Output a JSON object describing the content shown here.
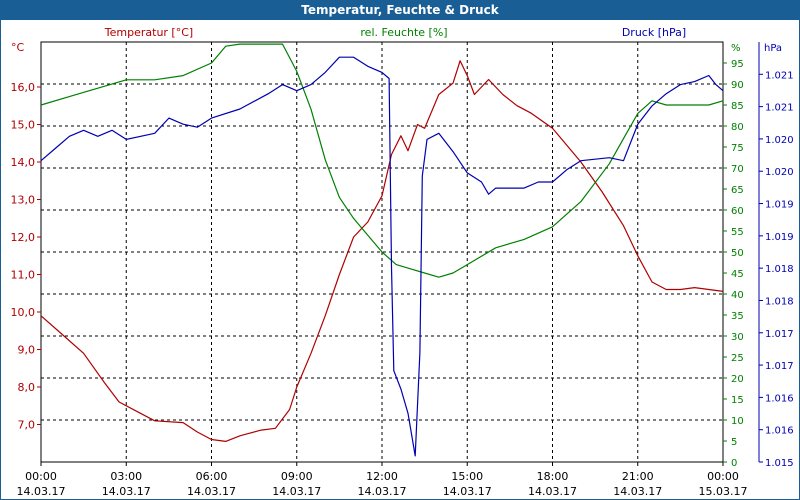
{
  "title": "Temperatur, Feuchte & Druck",
  "colors": {
    "temperature": "#b00000",
    "humidity": "#008000",
    "pressure": "#0000b0",
    "time": "#000000",
    "titlebar": "#1a5e96"
  },
  "chart_data": {
    "type": "line",
    "title": "Temperatur, Feuchte & Druck",
    "grid": true,
    "legend": "top, above plot",
    "x_axis": {
      "range": [
        "14.03.17 00:00",
        "15.03.17 00:00"
      ],
      "tick_times": [
        "00:00",
        "03:00",
        "06:00",
        "09:00",
        "12:00",
        "15:00",
        "18:00",
        "21:00",
        "00:00"
      ],
      "tick_dates": [
        "14.03.17",
        "14.03.17",
        "14.03.17",
        "14.03.17",
        "14.03.17",
        "14.03.17",
        "14.03.17",
        "14.03.17",
        "15.03.17"
      ]
    },
    "axes": {
      "temperature": {
        "unit_label": "°C",
        "ylim": [
          6.0,
          17.2
        ],
        "ticks": [
          "7,0",
          "8,0",
          "9,0",
          "10,0",
          "11,0",
          "12,0",
          "13,0",
          "14,0",
          "15,0",
          "16,0"
        ]
      },
      "humidity": {
        "unit_label": "%",
        "ylim": [
          0,
          100
        ],
        "ticks": [
          "0",
          "5",
          "10",
          "15",
          "20",
          "25",
          "30",
          "35",
          "40",
          "45",
          "50",
          "55",
          "60",
          "65",
          "70",
          "75",
          "80",
          "85",
          "90",
          "95"
        ]
      },
      "pressure": {
        "unit_label": "hPa",
        "ylim": [
          1014.8,
          1021.7
        ],
        "ticks": [
          "1.015",
          "1.016",
          "1.016",
          "1.017",
          "1.017",
          "1.018",
          "1.018",
          "1.019",
          "1.019",
          "1.020",
          "1.020",
          "1.021",
          "1.021"
        ]
      }
    },
    "series": [
      {
        "name": "Temperatur [°C]",
        "axis": "temperature",
        "points": [
          [
            "14.03.17 00:00",
            9.9
          ],
          [
            "14.03.17 00:45",
            9.4
          ],
          [
            "14.03.17 01:30",
            8.9
          ],
          [
            "14.03.17 02:15",
            8.1
          ],
          [
            "14.03.17 02:45",
            7.6
          ],
          [
            "14.03.17 03:30",
            7.3
          ],
          [
            "14.03.17 04:00",
            7.1
          ],
          [
            "14.03.17 05:00",
            7.05
          ],
          [
            "14.03.17 05:30",
            6.8
          ],
          [
            "14.03.17 06:00",
            6.6
          ],
          [
            "14.03.17 06:30",
            6.55
          ],
          [
            "14.03.17 07:00",
            6.7
          ],
          [
            "14.03.17 07:45",
            6.85
          ],
          [
            "14.03.17 08:15",
            6.9
          ],
          [
            "14.03.17 08:45",
            7.4
          ],
          [
            "14.03.17 09:00",
            8.0
          ],
          [
            "14.03.17 09:30",
            8.9
          ],
          [
            "14.03.17 10:00",
            9.9
          ],
          [
            "14.03.17 10:30",
            11.0
          ],
          [
            "14.03.17 11:00",
            12.0
          ],
          [
            "14.03.17 11:30",
            12.4
          ],
          [
            "14.03.17 12:00",
            13.1
          ],
          [
            "14.03.17 12:20",
            14.2
          ],
          [
            "14.03.17 12:40",
            14.7
          ],
          [
            "14.03.17 12:55",
            14.3
          ],
          [
            "14.03.17 13:15",
            15.0
          ],
          [
            "14.03.17 13:30",
            14.9
          ],
          [
            "14.03.17 14:00",
            15.8
          ],
          [
            "14.03.17 14:30",
            16.1
          ],
          [
            "14.03.17 14:45",
            16.7
          ],
          [
            "14.03.17 15:00",
            16.3
          ],
          [
            "14.03.17 15:15",
            15.8
          ],
          [
            "14.03.17 15:45",
            16.2
          ],
          [
            "14.03.17 16:15",
            15.8
          ],
          [
            "14.03.17 16:45",
            15.5
          ],
          [
            "14.03.17 17:15",
            15.3
          ],
          [
            "14.03.17 18:00",
            14.9
          ],
          [
            "14.03.17 19:00",
            14.0
          ],
          [
            "14.03.17 19:45",
            13.2
          ],
          [
            "14.03.17 20:30",
            12.3
          ],
          [
            "14.03.17 21:00",
            11.5
          ],
          [
            "14.03.17 21:30",
            10.8
          ],
          [
            "14.03.17 22:00",
            10.6
          ],
          [
            "14.03.17 22:30",
            10.6
          ],
          [
            "14.03.17 23:00",
            10.65
          ],
          [
            "14.03.17 23:30",
            10.6
          ],
          [
            "15.03.17 00:00",
            10.55
          ]
        ]
      },
      {
        "name": "rel. Feuchte [%]",
        "axis": "humidity",
        "points": [
          [
            "14.03.17 00:00",
            85
          ],
          [
            "14.03.17 01:00",
            87
          ],
          [
            "14.03.17 02:00",
            89
          ],
          [
            "14.03.17 03:00",
            91
          ],
          [
            "14.03.17 04:00",
            91
          ],
          [
            "14.03.17 05:00",
            92
          ],
          [
            "14.03.17 06:00",
            95
          ],
          [
            "14.03.17 06:30",
            99
          ],
          [
            "14.03.17 07:00",
            99.5
          ],
          [
            "14.03.17 08:00",
            99.5
          ],
          [
            "14.03.17 08:30",
            99.5
          ],
          [
            "14.03.17 09:00",
            93
          ],
          [
            "14.03.17 09:30",
            84
          ],
          [
            "14.03.17 10:00",
            72
          ],
          [
            "14.03.17 10:30",
            63
          ],
          [
            "14.03.17 11:00",
            58
          ],
          [
            "14.03.17 11:30",
            54
          ],
          [
            "14.03.17 12:00",
            50
          ],
          [
            "14.03.17 12:30",
            47
          ],
          [
            "14.03.17 13:00",
            46
          ],
          [
            "14.03.17 13:30",
            45
          ],
          [
            "14.03.17 14:00",
            44
          ],
          [
            "14.03.17 14:30",
            45
          ],
          [
            "14.03.17 15:00",
            47
          ],
          [
            "14.03.17 16:00",
            51
          ],
          [
            "14.03.17 17:00",
            53
          ],
          [
            "14.03.17 18:00",
            56
          ],
          [
            "14.03.17 19:00",
            62
          ],
          [
            "14.03.17 20:00",
            71
          ],
          [
            "14.03.17 20:30",
            77
          ],
          [
            "14.03.17 21:00",
            83
          ],
          [
            "14.03.17 21:30",
            86
          ],
          [
            "14.03.17 22:00",
            85
          ],
          [
            "14.03.17 23:00",
            85
          ],
          [
            "14.03.17 23:30",
            85
          ],
          [
            "15.03.17 00:00",
            86
          ]
        ]
      },
      {
        "name": "Druck [hPa]",
        "axis": "pressure",
        "points": [
          [
            "14.03.17 00:00",
            1019.75
          ],
          [
            "14.03.17 00:30",
            1019.95
          ],
          [
            "14.03.17 01:00",
            1020.15
          ],
          [
            "14.03.17 01:30",
            1020.25
          ],
          [
            "14.03.17 02:00",
            1020.15
          ],
          [
            "14.03.17 02:30",
            1020.25
          ],
          [
            "14.03.17 03:00",
            1020.1
          ],
          [
            "14.03.17 04:00",
            1020.2
          ],
          [
            "14.03.17 04:30",
            1020.45
          ],
          [
            "14.03.17 05:00",
            1020.35
          ],
          [
            "14.03.17 05:30",
            1020.3
          ],
          [
            "14.03.17 06:00",
            1020.45
          ],
          [
            "14.03.17 07:00",
            1020.6
          ],
          [
            "14.03.17 08:00",
            1020.85
          ],
          [
            "14.03.17 08:30",
            1021.0
          ],
          [
            "14.03.17 09:00",
            1020.9
          ],
          [
            "14.03.17 09:30",
            1021.0
          ],
          [
            "14.03.17 10:00",
            1021.2
          ],
          [
            "14.03.17 10:30",
            1021.45
          ],
          [
            "14.03.17 11:00",
            1021.45
          ],
          [
            "14.03.17 11:30",
            1021.3
          ],
          [
            "14.03.17 12:00",
            1021.2
          ],
          [
            "14.03.17 12:15",
            1021.1
          ],
          [
            "14.03.17 12:20",
            1018.0
          ],
          [
            "14.03.17 12:25",
            1016.3
          ],
          [
            "14.03.17 12:40",
            1016.0
          ],
          [
            "14.03.17 12:55",
            1015.6
          ],
          [
            "14.03.17 13:10",
            1014.9
          ],
          [
            "14.03.17 13:20",
            1016.6
          ],
          [
            "14.03.17 13:25",
            1019.5
          ],
          [
            "14.03.17 13:35",
            1020.1
          ],
          [
            "14.03.17 14:00",
            1020.2
          ],
          [
            "14.03.17 14:30",
            1019.9
          ],
          [
            "14.03.17 15:00",
            1019.55
          ],
          [
            "14.03.17 15:30",
            1019.4
          ],
          [
            "14.03.17 15:45",
            1019.2
          ],
          [
            "14.03.17 16:00",
            1019.3
          ],
          [
            "14.03.17 17:00",
            1019.3
          ],
          [
            "14.03.17 17:30",
            1019.4
          ],
          [
            "14.03.17 18:00",
            1019.4
          ],
          [
            "14.03.17 18:30",
            1019.6
          ],
          [
            "14.03.17 19:00",
            1019.75
          ],
          [
            "14.03.17 20:00",
            1019.8
          ],
          [
            "14.03.17 20:30",
            1019.75
          ],
          [
            "14.03.17 21:00",
            1020.35
          ],
          [
            "14.03.17 21:30",
            1020.65
          ],
          [
            "14.03.17 22:00",
            1020.85
          ],
          [
            "14.03.17 22:30",
            1021.0
          ],
          [
            "14.03.17 23:00",
            1021.05
          ],
          [
            "14.03.17 23:30",
            1021.15
          ],
          [
            "14.03.17 23:45",
            1021.0
          ],
          [
            "15.03.17 00:00",
            1020.9
          ]
        ]
      }
    ]
  }
}
